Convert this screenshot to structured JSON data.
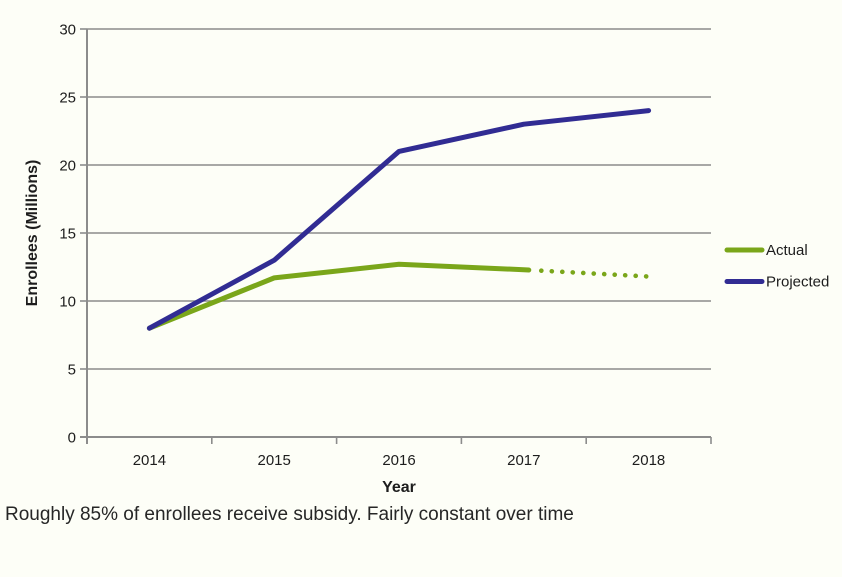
{
  "caption": {
    "text": "Roughly 85% of enrollees receive subsidy. Fairly constant over time"
  },
  "colors": {
    "background": "#FDFEF7",
    "axis": "#8C8C8C",
    "text": "#1D1D1D",
    "actual": "#7AA61A",
    "projected": "#312C93"
  },
  "chart_data": {
    "type": "line",
    "categories": [
      "2014",
      "2015",
      "2016",
      "2017",
      "2018"
    ],
    "series": [
      {
        "name": "Actual",
        "color": "#7AA61A",
        "values": [
          8,
          11.7,
          12.7,
          12.3,
          11.8
        ],
        "dotted_from_index": 3,
        "note": "segment from 2017 to 2018 drawn as dotted (estimated) line"
      },
      {
        "name": "Projected",
        "color": "#312C93",
        "values": [
          8,
          13,
          21,
          23,
          24
        ],
        "dotted_from_index": null,
        "note": "solid line for all years"
      }
    ],
    "title": "",
    "xlabel": "Year",
    "ylabel": "Enrollees (Millions)",
    "ylim": [
      0,
      30
    ],
    "yticks": [
      0,
      5,
      10,
      15,
      20,
      25,
      30
    ],
    "grid": "horizontal",
    "legend_position": "right"
  }
}
